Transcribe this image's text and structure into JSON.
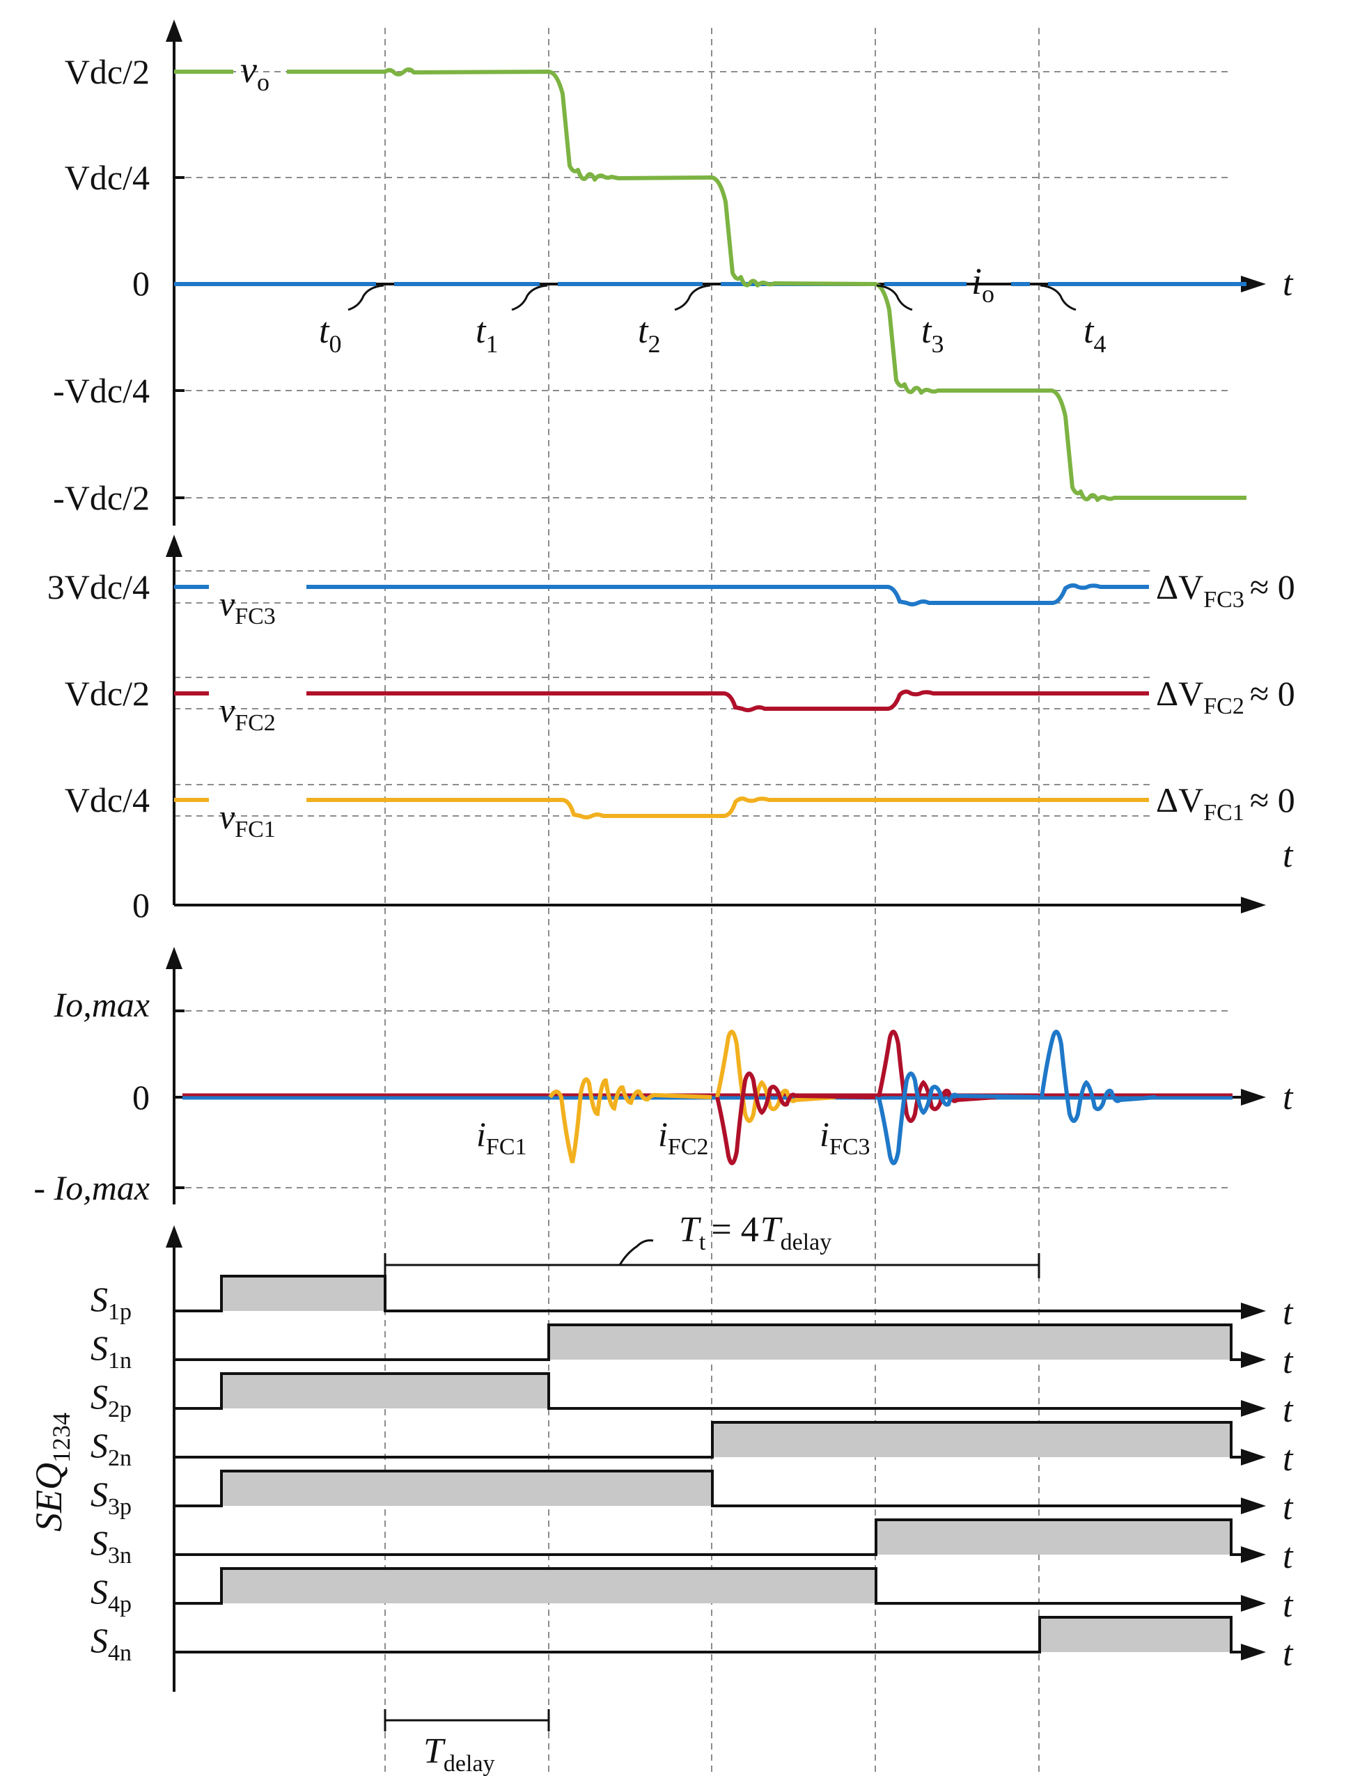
{
  "colors": {
    "vo": "#7cb342",
    "io": "#1f78c8",
    "fc3": "#1f78c8",
    "fc2": "#b0102a",
    "fc1": "#f2b01e",
    "gate_fill": "#c8c8c8",
    "grid": "#8c8c8c"
  },
  "panel1": {
    "ytick_labels": [
      "Vdc/2",
      "Vdc/4",
      "0",
      "-Vdc/4",
      "-Vdc/2"
    ],
    "vo_label": "vo",
    "io_label": "io",
    "time_axis_label": "t",
    "instant_labels": [
      {
        "base": "t",
        "sub": "0"
      },
      {
        "base": "t",
        "sub": "1"
      },
      {
        "base": "t",
        "sub": "2"
      },
      {
        "base": "t",
        "sub": "3"
      },
      {
        "base": "t",
        "sub": "4"
      }
    ],
    "vo_levels_in_Vdc": [
      0.5,
      0.25,
      0,
      -0.25,
      -0.5
    ]
  },
  "panel2": {
    "ytick_labels": [
      "3Vdc/4",
      "Vdc/2",
      "Vdc/4",
      "0"
    ],
    "traces": [
      {
        "name": "v",
        "sub": "FC3",
        "delta": "ΔV",
        "delta_sub": "FC3",
        "approx": "≈ 0",
        "level_in_Vdc": 0.75
      },
      {
        "name": "v",
        "sub": "FC2",
        "delta": "ΔV",
        "delta_sub": "FC2",
        "approx": "≈ 0",
        "level_in_Vdc": 0.5
      },
      {
        "name": "v",
        "sub": "FC1",
        "delta": "ΔV",
        "delta_sub": "FC1",
        "approx": "≈ 0",
        "level_in_Vdc": 0.25
      }
    ],
    "time_axis_label": "t"
  },
  "panel3": {
    "ytick_labels": [
      "Io,max",
      "0",
      "- Io,max"
    ],
    "current_labels": [
      {
        "base": "i",
        "sub": "FC1"
      },
      {
        "base": "i",
        "sub": "FC2"
      },
      {
        "base": "i",
        "sub": "FC3"
      }
    ],
    "time_axis_label": "t"
  },
  "panel4": {
    "sequence_label": {
      "base": "SEQ",
      "sub": "1234"
    },
    "tt_label": {
      "base": "T",
      "sub": "t",
      "eq": "= 4",
      "base2": "T",
      "sub2": "delay"
    },
    "tdelay_label": {
      "base": "T",
      "sub": "delay"
    },
    "time_axis_label": "t",
    "switches": [
      {
        "base": "S",
        "sub": "1p",
        "on_from": 0,
        "on_to": 1
      },
      {
        "base": "S",
        "sub": "1n",
        "on_from": 2,
        "on_to": 6.5
      },
      {
        "base": "S",
        "sub": "2p",
        "on_from": 0,
        "on_to": 2
      },
      {
        "base": "S",
        "sub": "2n",
        "on_from": 3,
        "on_to": 6.5
      },
      {
        "base": "S",
        "sub": "3p",
        "on_from": 0,
        "on_to": 3
      },
      {
        "base": "S",
        "sub": "3n",
        "on_from": 4,
        "on_to": 6.5
      },
      {
        "base": "S",
        "sub": "4p",
        "on_from": 0,
        "on_to": 4
      },
      {
        "base": "S",
        "sub": "4n",
        "on_from": 5,
        "on_to": 6.5
      }
    ]
  }
}
